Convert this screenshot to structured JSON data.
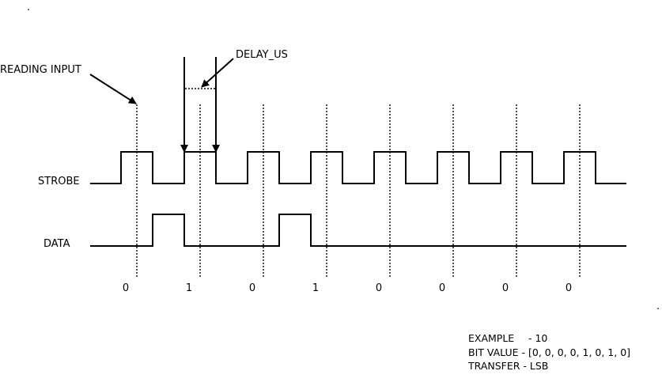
{
  "labels": {
    "reading_input": "READING INPUT",
    "delay": "DELAY_US",
    "strobe": "STROBE",
    "data": "DATA"
  },
  "bits": [
    "0",
    "1",
    "0",
    "1",
    "0",
    "0",
    "0",
    "0"
  ],
  "data_signal": [
    0,
    1,
    0,
    1,
    0,
    0,
    0,
    0
  ],
  "footer": {
    "example_key": "EXAMPLE",
    "example_sep": " - ",
    "example_value": "10",
    "bitvalue_key": "BIT VALUE",
    "bitvalue_sep": " - ",
    "bitvalue_value": "[0, 0, 0, 0, 1, 0, 1, 0]",
    "transfer_key": "TRANSFER",
    "transfer_sep": " - ",
    "transfer_value": "LSB"
  },
  "dots": [
    ".",
    "."
  ]
}
